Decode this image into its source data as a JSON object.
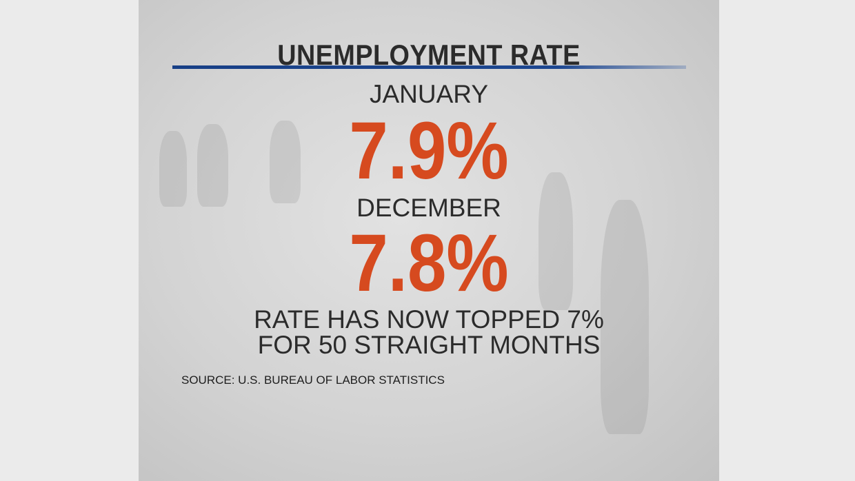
{
  "header": {
    "title": "UNEMPLOYMENT RATE"
  },
  "readings": [
    {
      "label": "JANUARY",
      "value": "7.9%"
    },
    {
      "label": "DECEMBER",
      "value": "7.8%"
    }
  ],
  "note": [
    "RATE HAS NOW TOPPED 7%",
    "FOR 50 STRAIGHT MONTHS"
  ],
  "source": "SOURCE: U.S. BUREAU OF LABOR STATISTICS"
}
